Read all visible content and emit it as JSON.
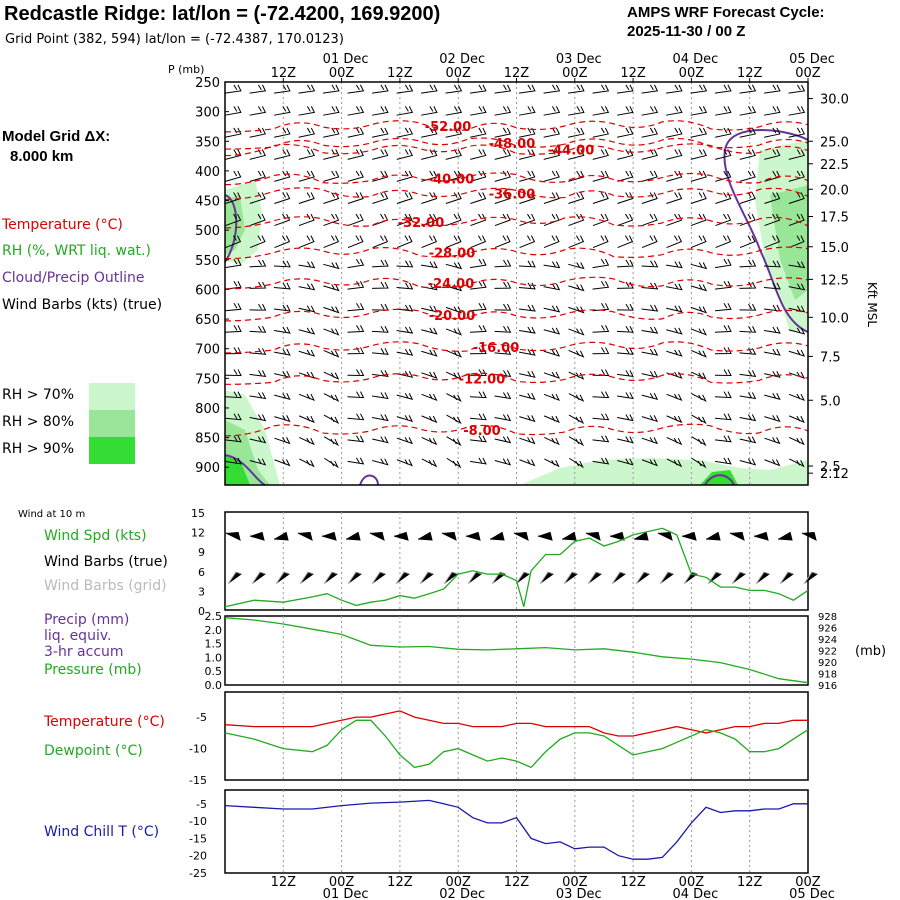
{
  "header": {
    "title": "Redcastle Ridge:  lat/lon = (-72.4200, 169.9200)",
    "subtitle": "Grid Point (382, 594) lat/lon = (-72.4387, 170.0123)",
    "cycle_line1": "AMPS WRF Forecast Cycle:",
    "cycle_line2": "2025-11-30 / 00  Z"
  },
  "legend": {
    "model_grid_line1": "Model Grid ΔX:",
    "model_grid_line2": "8.000 km",
    "temperature": "Temperature (°C)",
    "rh": "RH (%, WRT liq. wat.)",
    "cloud": "Cloud/Precip Outline",
    "wind_barbs": "Wind Barbs (kts) (true)",
    "rh70": "RH > 70%",
    "rh80": "RH > 80%",
    "rh90": "RH > 90%",
    "colors": {
      "rh70": "#ccf7cc",
      "rh80": "#99e699",
      "rh90": "#33dd33",
      "temp": "#dd0000",
      "cloud": "#663399"
    }
  },
  "chart_data": [
    {
      "type": "heatmap",
      "name": "time-height cross section",
      "ylabel": "P (mb)",
      "right_label": "Kft MSL",
      "pressure_ticks": [
        "250",
        "300",
        "350",
        "400",
        "450",
        "500",
        "550",
        "600",
        "650",
        "700",
        "750",
        "800",
        "850",
        "900"
      ],
      "ylim": [
        250,
        930
      ],
      "kft_ticks": [
        "30.0",
        "25.0",
        "22.5",
        "20.0",
        "17.5",
        "15.0",
        "12.5",
        "10.0",
        "7.5",
        "5.0",
        "2.5",
        "2.12"
      ],
      "kft_pressure": [
        278,
        350,
        388,
        431,
        477,
        528,
        583,
        647,
        713,
        787,
        898,
        910
      ],
      "top_hour_ticks": [
        "12Z",
        "00Z",
        "12Z",
        "00Z",
        "12Z",
        "00Z",
        "12Z",
        "00Z",
        "12Z",
        "00Z"
      ],
      "top_date_ticks": [
        "01 Dec",
        "02 Dec",
        "03 Dec",
        "04 Dec",
        "05 Dec"
      ],
      "x_hours_range": [
        0,
        120
      ],
      "temperature_contours": [
        {
          "label": "-52.00",
          "pressure": 324
        },
        {
          "label": "-48.00",
          "pressure": 353
        },
        {
          "label": "-44.00",
          "pressure": 364
        },
        {
          "label": "-40.00",
          "pressure": 413
        },
        {
          "label": "-36.00",
          "pressure": 438
        },
        {
          "label": "-32.00",
          "pressure": 486
        },
        {
          "label": "-28.00",
          "pressure": 538
        },
        {
          "label": "-24.00",
          "pressure": 589
        },
        {
          "label": "-20.00",
          "pressure": 643
        },
        {
          "label": "-16.00",
          "pressure": 697
        },
        {
          "label": "-12.00",
          "pressure": 750
        },
        {
          "label": "-8.00",
          "pressure": 837
        }
      ]
    },
    {
      "type": "line",
      "name": "wind at 10 m",
      "panel_title": "Wind at 10 m",
      "labels": {
        "spd": "Wind Spd (kts)",
        "barbs_true": "Wind Barbs (true)",
        "barbs_grid": "Wind Barbs (grid)"
      },
      "yticks": [
        "15",
        "12",
        "9",
        "6",
        "3",
        "0"
      ],
      "ylim": [
        0,
        15
      ],
      "x_hours": [
        0,
        6,
        12,
        18,
        21,
        24,
        27,
        30,
        33,
        36,
        39,
        42,
        45,
        48,
        51,
        54,
        57,
        60,
        61.5,
        63,
        66,
        69,
        72,
        75,
        78,
        81,
        84,
        87,
        90,
        93,
        96,
        99,
        102,
        105,
        108,
        111,
        114,
        117,
        120
      ],
      "series": [
        {
          "name": "Wind Spd",
          "values": [
            0.5,
            1.5,
            1.2,
            2.0,
            2.5,
            1.5,
            0.7,
            1.2,
            1.5,
            2.2,
            1.8,
            2.5,
            3.2,
            5.5,
            6.0,
            5.5,
            5.5,
            4.5,
            0.5,
            6.0,
            8.5,
            8.5,
            10.5,
            11.0,
            9.8,
            10.5,
            11.5,
            12.0,
            12.5,
            11.5,
            5.5,
            5.0,
            3.5,
            3.5,
            3.0,
            3.0,
            2.5,
            1.5,
            3.0
          ]
        }
      ]
    },
    {
      "type": "line",
      "name": "precip and pressure",
      "labels": {
        "precip_1": "Precip (mm)",
        "precip_2": "liq. equiv.",
        "precip_3": "3-hr accum",
        "pressure": "Pressure (mb)"
      },
      "yticks_left": [
        "2.5",
        "2.0",
        "1.5",
        "1.0",
        "0.5",
        "0.0"
      ],
      "ylim_left": [
        0,
        2.5
      ],
      "yticks_right": [
        "928",
        "926",
        "924",
        "922",
        "920",
        "918",
        "916"
      ],
      "ylim_right": [
        916,
        928
      ],
      "right_unit": "(mb)",
      "x_hours": [
        0,
        6,
        12,
        18,
        24,
        30,
        36,
        42,
        48,
        54,
        60,
        66,
        72,
        78,
        84,
        90,
        96,
        102,
        108,
        114,
        120
      ],
      "series": [
        {
          "name": "Pressure",
          "values": [
            927.7,
            927.3,
            926.6,
            925.7,
            924.8,
            922.9,
            922.6,
            922.7,
            922.2,
            922.1,
            922.3,
            922.5,
            922.1,
            922.3,
            921.7,
            920.9,
            920.5,
            919.9,
            918.7,
            917.1,
            916.4
          ]
        }
      ]
    },
    {
      "type": "line",
      "name": "temperature and dewpoint",
      "labels": {
        "temp": "Temperature (°C)",
        "dew": "Dewpoint (°C)"
      },
      "yticks": [
        "-5",
        "-10",
        "-15"
      ],
      "ylim": [
        -15,
        -1
      ],
      "x_hours": [
        0,
        6,
        12,
        18,
        21,
        24,
        27,
        30,
        33,
        36,
        39,
        42,
        45,
        48,
        51,
        54,
        57,
        60,
        63,
        66,
        69,
        72,
        75,
        78,
        81,
        84,
        87,
        90,
        93,
        96,
        99,
        102,
        105,
        108,
        111,
        114,
        117,
        120
      ],
      "series": [
        {
          "name": "Temperature",
          "values": [
            -6.2,
            -6.5,
            -6.5,
            -6.5,
            -6.0,
            -5.5,
            -5.0,
            -5.0,
            -4.5,
            -4.0,
            -5.0,
            -5.5,
            -6.0,
            -6.0,
            -6.5,
            -6.5,
            -6.5,
            -6.0,
            -6.0,
            -6.5,
            -6.5,
            -6.5,
            -6.5,
            -7.5,
            -8.0,
            -8.0,
            -7.5,
            -7.0,
            -6.5,
            -7.0,
            -7.5,
            -7.0,
            -6.5,
            -6.5,
            -6.0,
            -6.0,
            -5.5,
            -5.5
          ]
        },
        {
          "name": "Dewpoint",
          "values": [
            -7.5,
            -8.5,
            -10.0,
            -10.5,
            -9.5,
            -7.0,
            -5.5,
            -5.5,
            -8.0,
            -11.0,
            -13.0,
            -12.5,
            -10.5,
            -10.0,
            -11.0,
            -12.0,
            -11.5,
            -12.0,
            -13.0,
            -10.5,
            -8.5,
            -7.5,
            -7.5,
            -8.0,
            -9.5,
            -11.0,
            -10.5,
            -10.0,
            -9.0,
            -8.0,
            -7.0,
            -7.5,
            -8.5,
            -10.5,
            -10.5,
            -10.0,
            -8.5,
            -7.0
          ]
        }
      ]
    },
    {
      "type": "line",
      "name": "wind chill",
      "labels": {
        "chill": "Wind Chill T (°C)"
      },
      "yticks": [
        "-5",
        "-10",
        "-15",
        "-20",
        "-25"
      ],
      "ylim": [
        -25,
        -1
      ],
      "bottom_hour_ticks": [
        "12Z",
        "00Z",
        "12Z",
        "00Z",
        "12Z",
        "00Z",
        "12Z",
        "00Z",
        "12Z",
        "00Z"
      ],
      "bottom_date_ticks": [
        "01 Dec",
        "02 Dec",
        "03 Dec",
        "04 Dec",
        "05 Dec"
      ],
      "x_hours": [
        0,
        6,
        12,
        18,
        24,
        30,
        36,
        42,
        45,
        48,
        51,
        54,
        57,
        60,
        63,
        66,
        69,
        72,
        75,
        78,
        81,
        84,
        87,
        90,
        93,
        96,
        99,
        102,
        105,
        108,
        111,
        114,
        117,
        120
      ],
      "series": [
        {
          "name": "Wind Chill",
          "values": [
            -5.5,
            -6.0,
            -6.5,
            -6.5,
            -5.5,
            -4.8,
            -4.5,
            -4.0,
            -5.0,
            -6.0,
            -9.0,
            -10.5,
            -10.5,
            -9.0,
            -15.0,
            -16.5,
            -16.0,
            -18.0,
            -17.5,
            -17.5,
            -20.0,
            -21.0,
            -21.0,
            -20.5,
            -16.0,
            -10.5,
            -6.0,
            -7.5,
            -7.0,
            -7.0,
            -6.5,
            -6.5,
            -5.0,
            -5.0
          ]
        }
      ]
    }
  ]
}
